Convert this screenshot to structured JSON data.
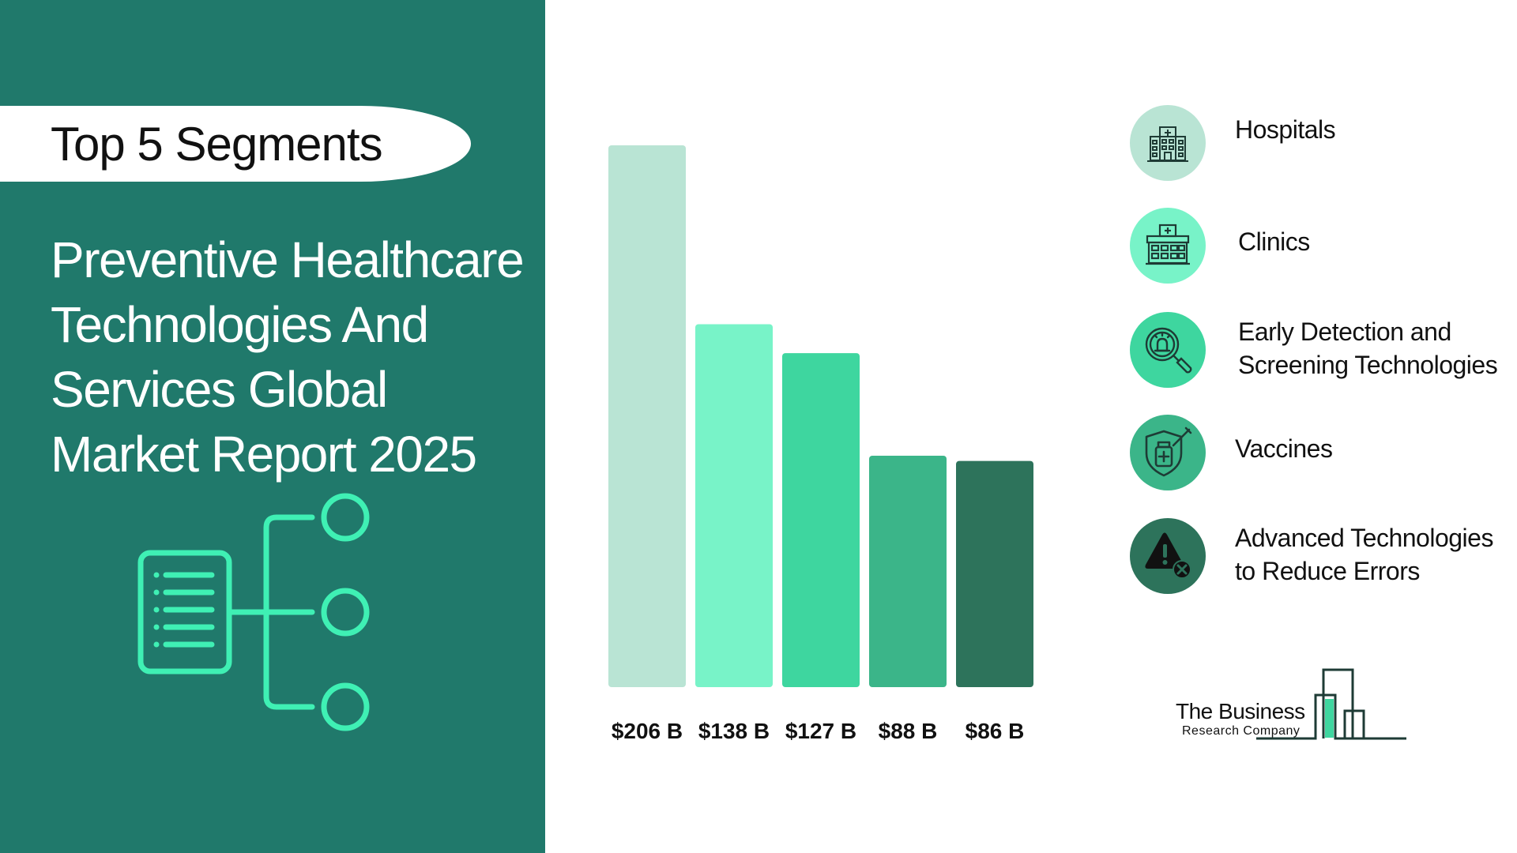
{
  "header": {
    "pill_label": "Top 5 Segments",
    "title_lines": [
      "Preventive Healthcare",
      "Technologies And",
      "Services Global",
      "Market Report 2025"
    ]
  },
  "colors": {
    "panel": "#20796b",
    "bars": [
      "#b9e4d4",
      "#78f3c8",
      "#3ed69f",
      "#3bb589",
      "#2d735b"
    ]
  },
  "chart_data": {
    "type": "bar",
    "categories": [
      "Hospitals",
      "Clinics",
      "Early Detection and Screening Technologies",
      "Vaccines",
      "Advanced Technologies to Reduce Errors"
    ],
    "values": [
      206,
      138,
      127,
      88,
      86
    ],
    "value_labels": [
      "$206 B",
      "$138 B",
      "$127 B",
      "$88 B",
      "$86 B"
    ],
    "ylim": [
      0,
      206
    ],
    "grid": false,
    "legend_position": "right"
  },
  "legend": [
    {
      "label_lines": [
        "Hospitals"
      ],
      "icon": "hospital-icon"
    },
    {
      "label_lines": [
        "Clinics"
      ],
      "icon": "clinic-icon"
    },
    {
      "label_lines": [
        "Early Detection and",
        "Screening Technologies"
      ],
      "icon": "magnifier-alarm-icon"
    },
    {
      "label_lines": [
        "Vaccines"
      ],
      "icon": "vaccine-shield-icon"
    },
    {
      "label_lines": [
        "Advanced Technologies",
        "to Reduce Errors"
      ],
      "icon": "warning-error-icon"
    }
  ],
  "logo": {
    "line1": "The Business",
    "line2": "Research Company"
  }
}
